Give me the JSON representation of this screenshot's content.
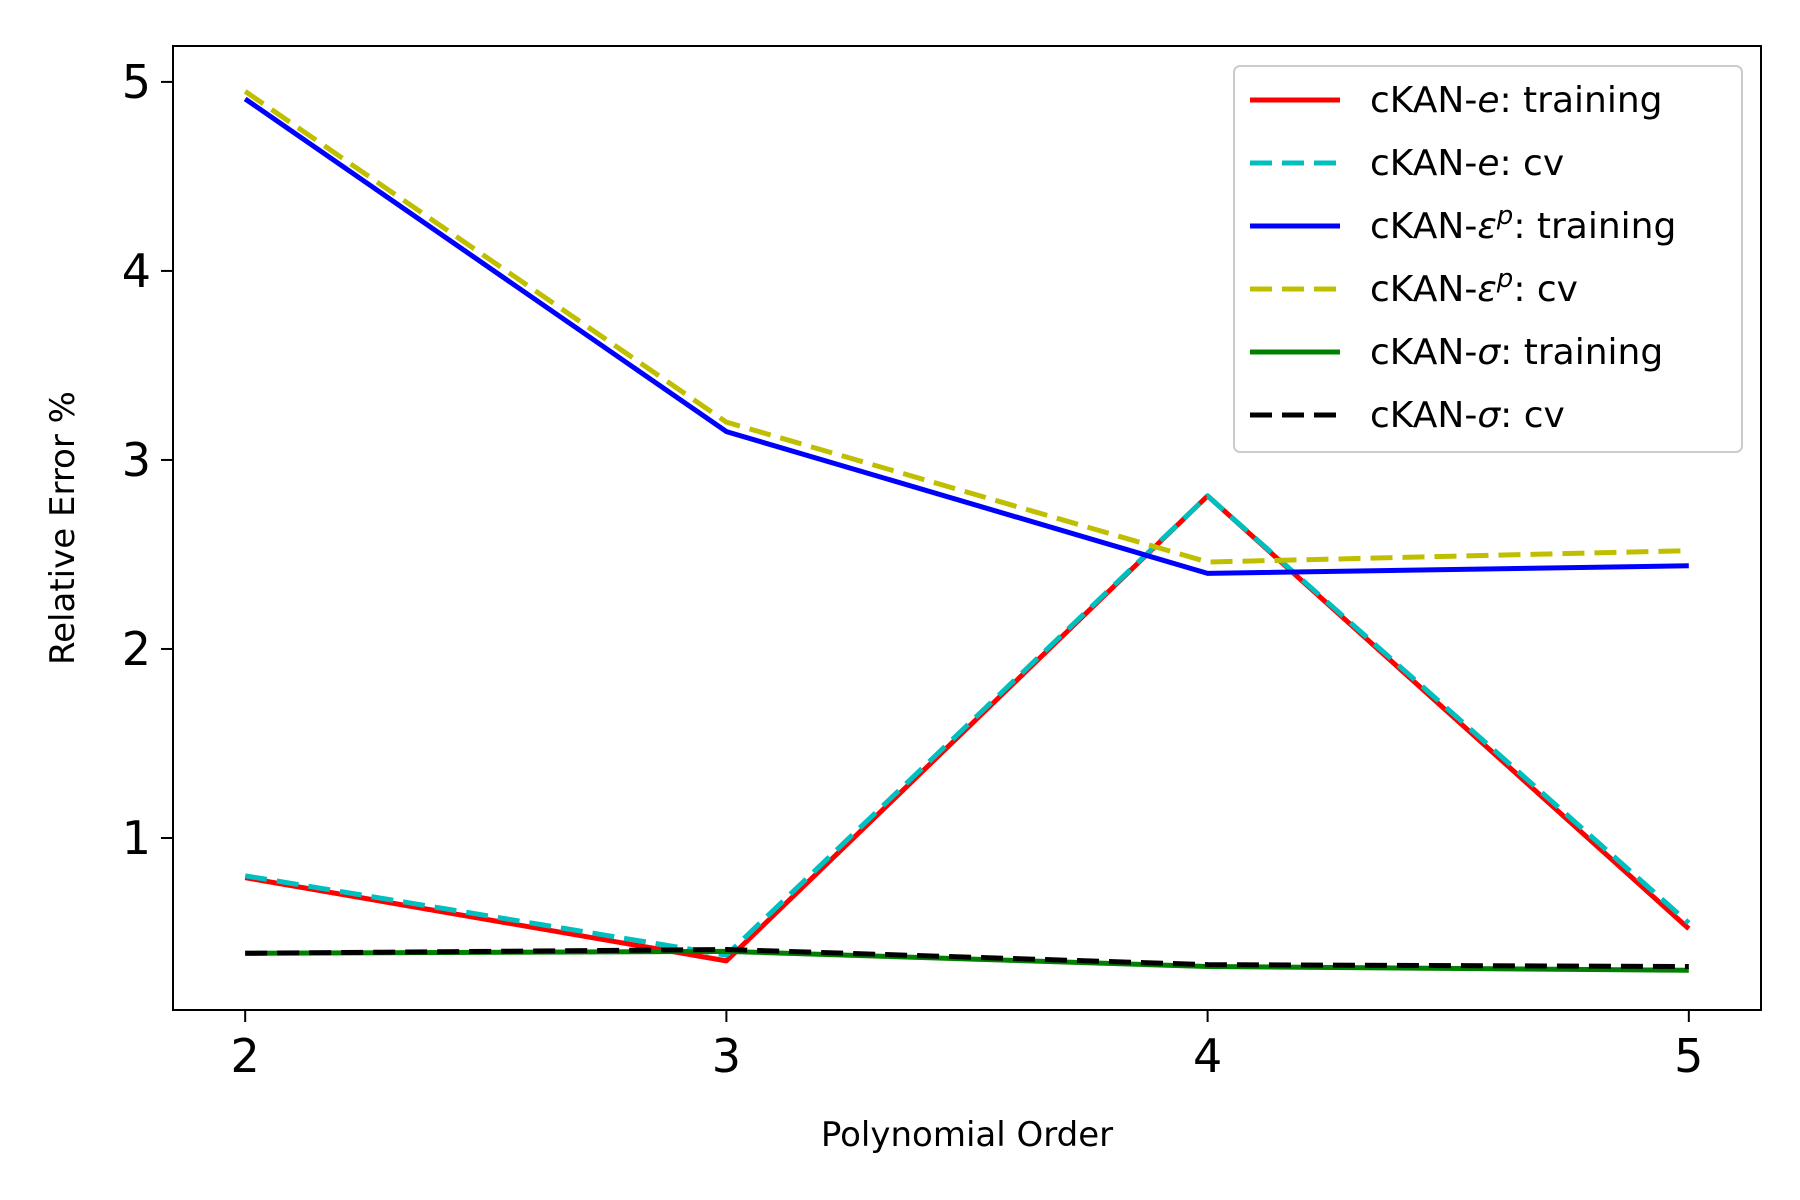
{
  "chart_data": {
    "type": "line",
    "xlabel": "Polynomial Order",
    "ylabel": "Relative Error %",
    "x": [
      2,
      3,
      4,
      5
    ],
    "xticks": [
      "2",
      "3",
      "4",
      "5"
    ],
    "yticks": [
      "1",
      "2",
      "3",
      "4",
      "5"
    ],
    "xlim": [
      1.85,
      5.15
    ],
    "ylim": [
      0.09,
      5.19
    ],
    "grid": false,
    "legend_position": "top-right",
    "series": [
      {
        "name": "cKAN-e: training",
        "name_prefix": "cKAN-",
        "name_symbol": "e",
        "name_sup": "",
        "name_suffix": ": training",
        "values": [
          0.79,
          0.35,
          2.81,
          0.52
        ],
        "color": "#ff0000",
        "dash": "solid"
      },
      {
        "name": "cKAN-e: cv",
        "name_prefix": "cKAN-",
        "name_symbol": "e",
        "name_sup": "",
        "name_suffix": ": cv",
        "values": [
          0.8,
          0.38,
          2.81,
          0.55
        ],
        "color": "#00bfbf",
        "dash": "dashed"
      },
      {
        "name": "cKAN-εp: training",
        "name_prefix": "cKAN-",
        "name_symbol": "ε",
        "name_sup": "p",
        "name_suffix": ": training",
        "values": [
          4.91,
          3.15,
          2.4,
          2.44
        ],
        "color": "#0000ff",
        "dash": "solid"
      },
      {
        "name": "cKAN-εp: cv",
        "name_prefix": "cKAN-",
        "name_symbol": "ε",
        "name_sup": "p",
        "name_suffix": ": cv",
        "values": [
          4.95,
          3.2,
          2.46,
          2.52
        ],
        "color": "#bfbf00",
        "dash": "dashed"
      },
      {
        "name": "cKAN-σ: training",
        "name_prefix": "cKAN-",
        "name_symbol": "σ",
        "name_sup": "",
        "name_suffix": ": training",
        "values": [
          0.39,
          0.4,
          0.32,
          0.3
        ],
        "color": "#008000",
        "dash": "solid"
      },
      {
        "name": "cKAN-σ: cv",
        "name_prefix": "cKAN-",
        "name_symbol": "σ",
        "name_sup": "",
        "name_suffix": ": cv",
        "values": [
          0.39,
          0.41,
          0.33,
          0.32
        ],
        "color": "#000000",
        "dash": "dashed"
      }
    ]
  }
}
